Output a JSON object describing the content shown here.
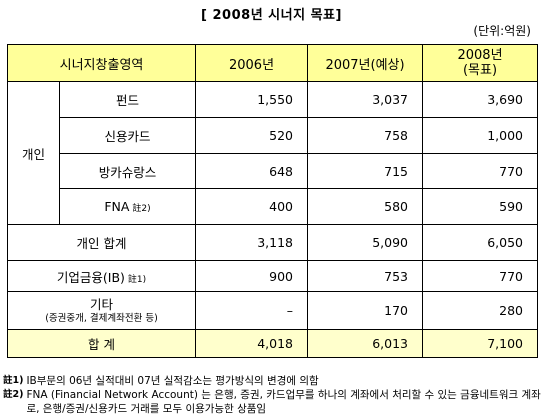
{
  "title": "[ 2008년 시너지 목표]",
  "unit": "(단위:억원)",
  "header": {
    "area": "시너지창출영역",
    "y2006": "2006년",
    "y2007": "2007년(예상)",
    "y2008_line1": "2008년",
    "y2008_line2": "(목표)"
  },
  "rows": {
    "personal_group": "개인",
    "fund": {
      "label": "펀드",
      "v2006": "1,550",
      "v2007": "3,037",
      "v2008": "3,690"
    },
    "credit_card": {
      "label": "신용카드",
      "v2006": "520",
      "v2007": "758",
      "v2008": "1,000"
    },
    "bancassurance": {
      "label": "방카슈랑스",
      "v2006": "648",
      "v2007": "715",
      "v2008": "770"
    },
    "fna": {
      "label": "FNA",
      "note": "註2)",
      "v2006": "400",
      "v2007": "580",
      "v2008": "590"
    },
    "personal_total": {
      "label": "개인 합계",
      "v2006": "3,118",
      "v2007": "5,090",
      "v2008": "6,050"
    },
    "ib": {
      "label": "기업금융(IB)",
      "note": "註1)",
      "v2006": "900",
      "v2007": "753",
      "v2008": "770"
    },
    "etc": {
      "label": "기타",
      "sublabel": "(증권중개, 결제계좌전환 등)",
      "v2006": "–",
      "v2007": "170",
      "v2008": "280"
    },
    "grand_total": {
      "label": "합 계",
      "v2006": "4,018",
      "v2007": "6,013",
      "v2008": "7,100"
    }
  },
  "footnotes": [
    {
      "label": "註1)",
      "text": "IB부문의 06년 실적대비 07년 실적감소는 평가방식의 변경에 의함"
    },
    {
      "label": "註2)",
      "text": "FNA (Financial Network Account) 는 은행, 증권, 카드업무를 하나의 계좌에서 처리할 수 있는 금융네트워크 계좌로, 은행/증권/신용카드 거래를 모두 이용가능한 상품임"
    }
  ]
}
